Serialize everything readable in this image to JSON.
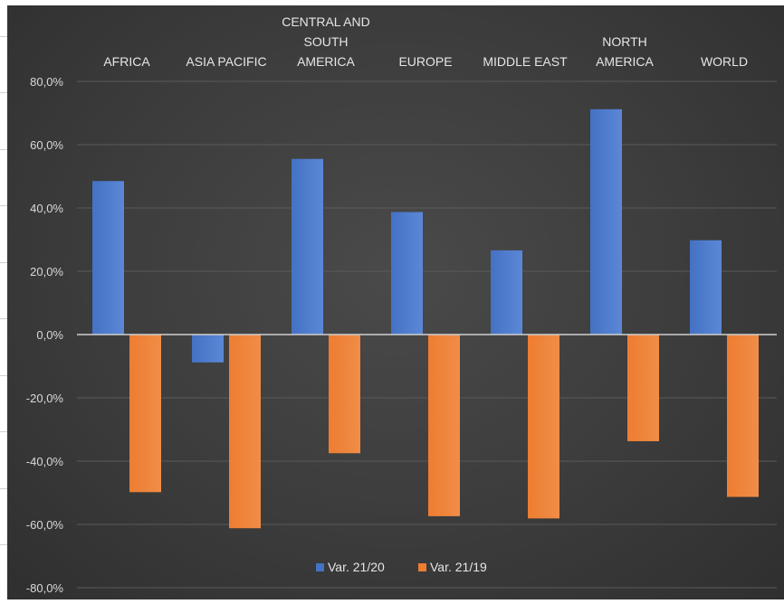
{
  "chart_data": {
    "type": "bar",
    "categories": [
      "AFRICA",
      "ASIA PACIFIC",
      "CENTRAL AND SOUTH AMERICA",
      "EUROPE",
      "MIDDLE EAST",
      "NORTH AMERICA",
      "WORLD"
    ],
    "category_label_lines": [
      [
        "AFRICA"
      ],
      [
        "ASIA PACIFIC"
      ],
      [
        "CENTRAL AND",
        "SOUTH",
        "AMERICA"
      ],
      [
        "EUROPE"
      ],
      [
        "MIDDLE EAST"
      ],
      [
        "NORTH",
        "AMERICA"
      ],
      [
        "WORLD"
      ]
    ],
    "series": [
      {
        "name": "Var. 21/20",
        "color": "#4472c4",
        "values": [
          48.5,
          -8.8,
          55.5,
          38.7,
          26.6,
          71.2,
          29.8
        ]
      },
      {
        "name": "Var. 21/19",
        "color": "#ed7d31",
        "values": [
          -49.8,
          -61.2,
          -37.5,
          -57.4,
          -58.1,
          -33.7,
          -51.3
        ]
      }
    ],
    "title": "",
    "xlabel": "",
    "ylabel": "",
    "ylim": [
      -80,
      80
    ],
    "yticks": [
      80,
      60,
      40,
      20,
      0,
      -20,
      -40,
      -60,
      -80
    ],
    "ytick_labels": [
      "80,0%",
      "60,0%",
      "40,0%",
      "20,0%",
      "0,0%",
      "-20,0%",
      "-40,0%",
      "-60,0%",
      "-80,0%"
    ],
    "grid": true,
    "legend": "bottom",
    "category_labels_position": "top"
  }
}
